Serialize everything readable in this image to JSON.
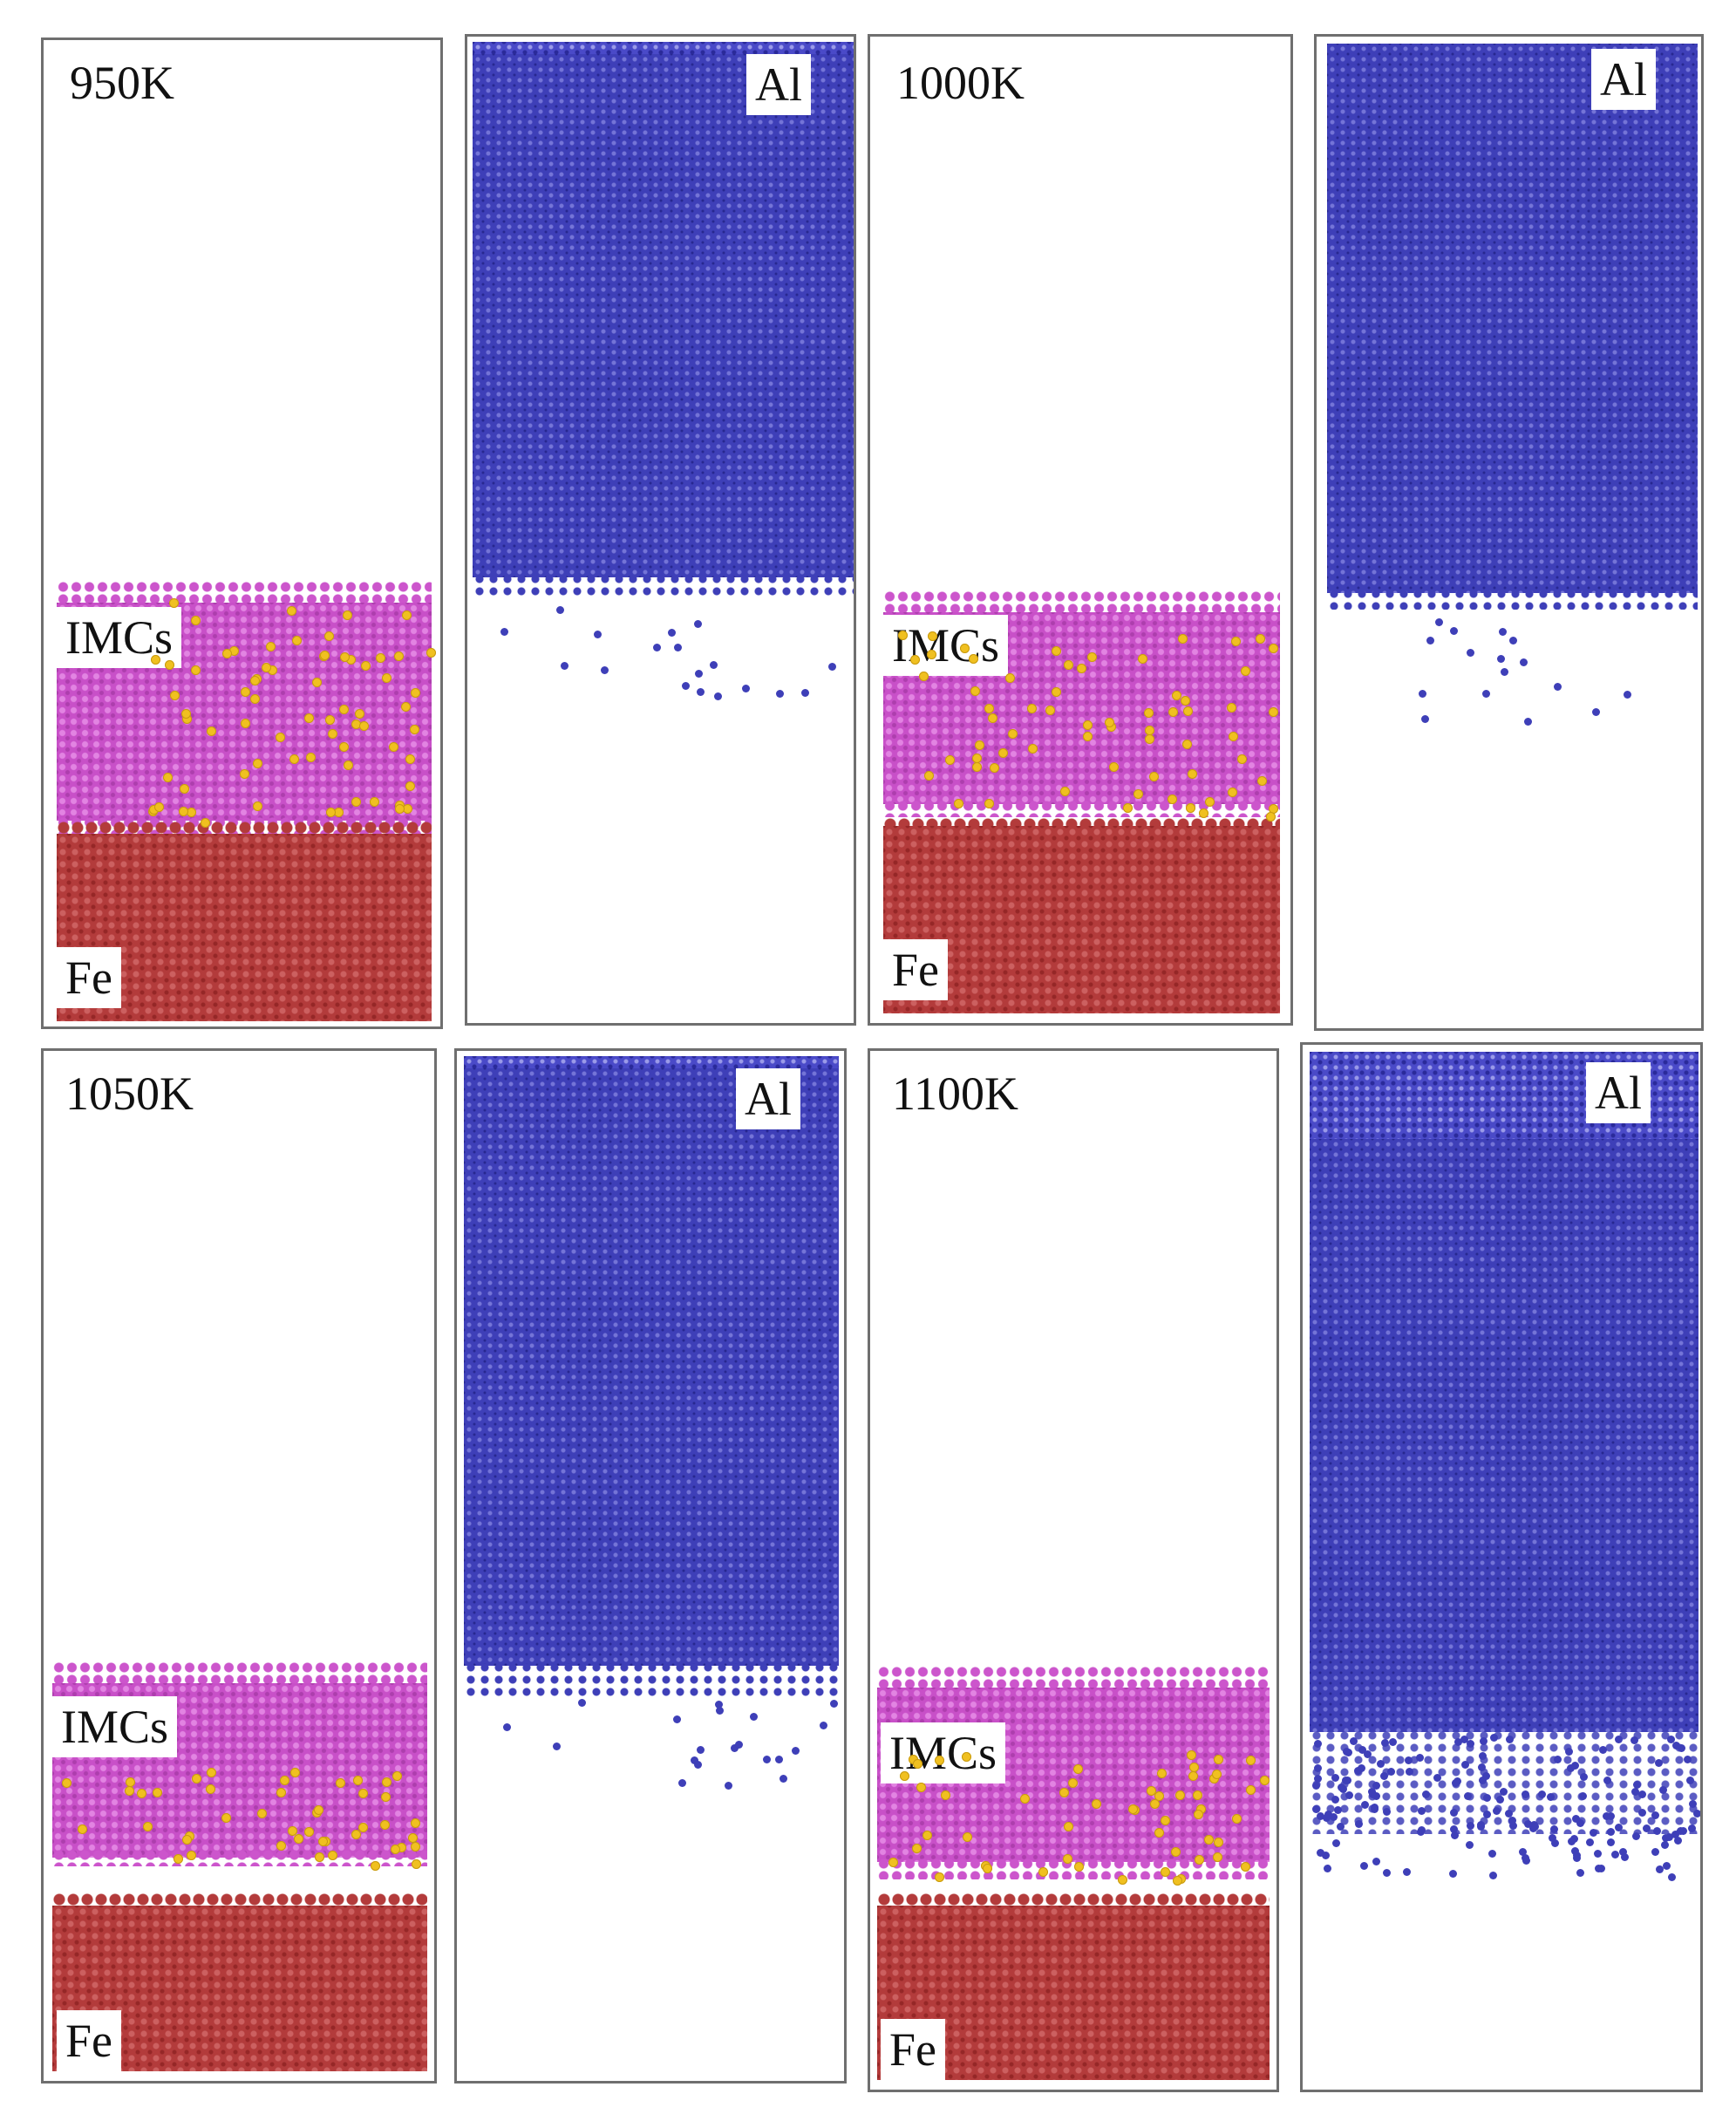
{
  "figure": {
    "panels": [
      {
        "temperature": "950K",
        "imc_label": "IMCs",
        "fe_label": "Fe",
        "al_label": "Al"
      },
      {
        "temperature": "1000K",
        "imc_label": "IMCs",
        "fe_label": "Fe",
        "al_label": "Al"
      },
      {
        "temperature": "1050K",
        "imc_label": "IMCs",
        "fe_label": "Fe",
        "al_label": "Al"
      },
      {
        "temperature": "1100K",
        "imc_label": "IMCs",
        "fe_label": "Fe",
        "al_label": "Al"
      }
    ],
    "colors": {
      "aluminum": "#3e3fb8",
      "iron": "#b33b3b",
      "intermetallic": "#c850c8",
      "highlight_atoms": "#f0c020",
      "frame": "#6f6f6f"
    }
  }
}
